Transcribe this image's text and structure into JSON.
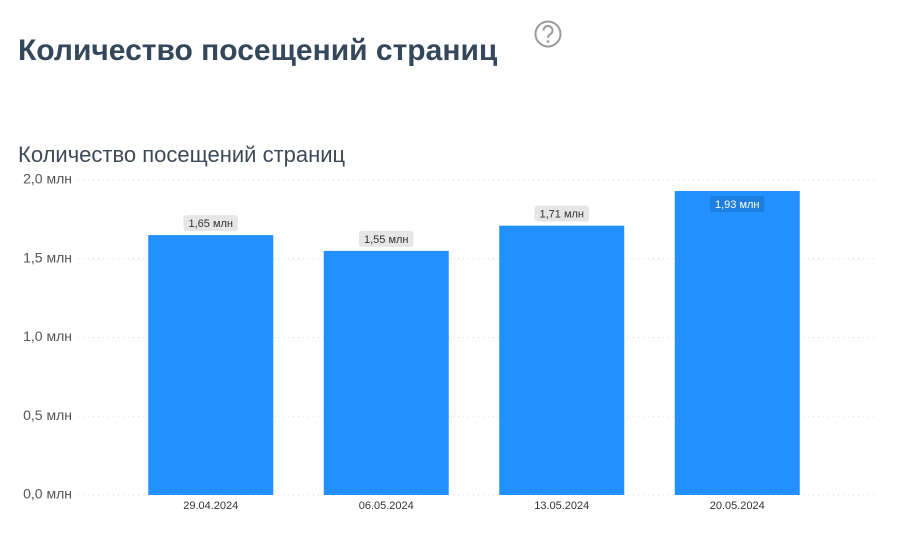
{
  "header": {
    "title": "Количество посещений страниц"
  },
  "chart_data": {
    "type": "bar",
    "title": "Количество посещений страниц",
    "categories": [
      "29.04.2024",
      "06.05.2024",
      "13.05.2024",
      "20.05.2024"
    ],
    "values": [
      1.65,
      1.55,
      1.71,
      1.93
    ],
    "value_labels": [
      "1,65 млн",
      "1,55 млн",
      "1,71 млн",
      "1,93 млн"
    ],
    "color": "#2290ff",
    "ylim": [
      0,
      2
    ],
    "yticks": [
      {
        "value": 0,
        "label": "0,0 млн"
      },
      {
        "value": 0.5,
        "label": "0,5 млн"
      },
      {
        "value": 1,
        "label": "1,0 млн"
      },
      {
        "value": 1.5,
        "label": "1,5 млн"
      },
      {
        "value": 2,
        "label": "2,0 млн"
      }
    ],
    "grid": true
  }
}
